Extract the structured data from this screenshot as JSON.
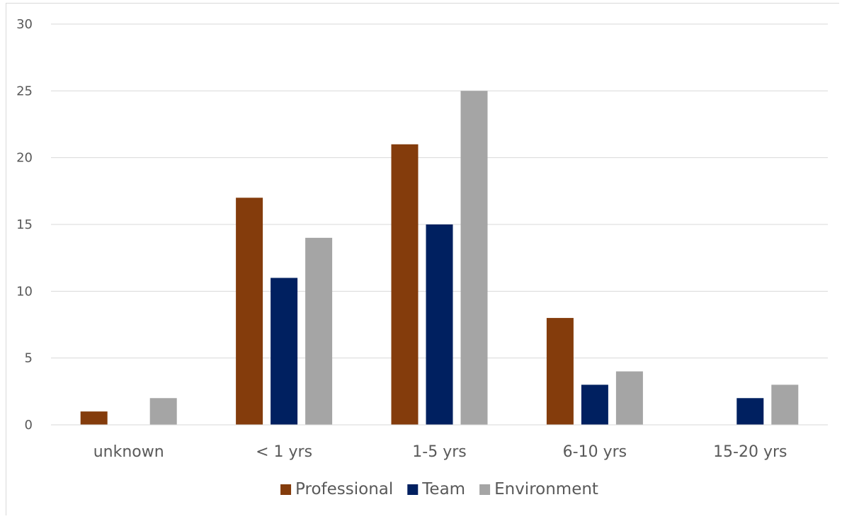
{
  "chart_data": {
    "type": "bar",
    "title": "",
    "xlabel": "",
    "ylabel": "",
    "categories": [
      "unknown",
      "< 1 yrs",
      "1-5 yrs",
      "6-10 yrs",
      "15-20 yrs"
    ],
    "series": [
      {
        "name": "Professional",
        "color": "#843c0c",
        "values": [
          1,
          17,
          21,
          8,
          0
        ]
      },
      {
        "name": "Team",
        "color": "#002060",
        "values": [
          0,
          11,
          15,
          3,
          2
        ]
      },
      {
        "name": "Environment",
        "color": "#a5a5a5",
        "values": [
          2,
          14,
          25,
          4,
          3
        ]
      }
    ],
    "ylim": [
      0,
      30
    ],
    "yticks": [
      "0",
      "5",
      "10",
      "15",
      "20",
      "25",
      "30"
    ],
    "grid": true,
    "gridline_color": "#d9d9d9",
    "legend_position": "bottom"
  }
}
